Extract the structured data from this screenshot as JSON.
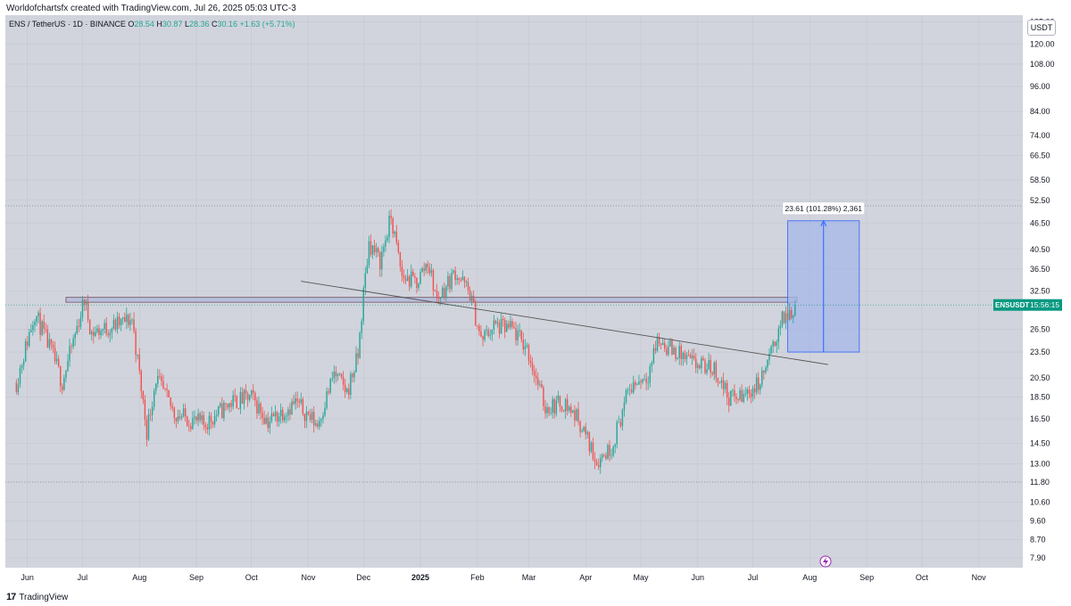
{
  "header": {
    "attribution": "Worldofchartsfx created with TradingView.com, Jul 26, 2025 05:03 UTC-3"
  },
  "legend": {
    "symbol": "ENS / TetherUS · 1D · BINANCE",
    "open": "O28.54",
    "high": "H30.87",
    "low": "L28.36",
    "close": "C30.16",
    "change": "+1.63 (+5.71%)"
  },
  "price_axis": {
    "currency": "USDT",
    "ticks": [
      "135.00",
      "120.00",
      "108.00",
      "96.00",
      "84.00",
      "74.00",
      "66.50",
      "58.50",
      "52.50",
      "46.50",
      "40.50",
      "36.50",
      "32.50",
      "26.50",
      "23.50",
      "20.50",
      "18.50",
      "16.50",
      "14.50",
      "13.00",
      "11.80",
      "10.60",
      "9.60",
      "8.70",
      "7.90"
    ]
  },
  "time_axis": {
    "labels": [
      "Jun",
      "Jul",
      "Aug",
      "Sep",
      "Oct",
      "Nov",
      "Dec",
      "2025",
      "Feb",
      "Mar",
      "Apr",
      "May",
      "Jun",
      "Jul",
      "Aug",
      "Sep",
      "Oct",
      "Nov"
    ]
  },
  "last_price": {
    "ticker": "ENSUSDT",
    "countdown": "15:56:15"
  },
  "measure": {
    "label": "23.61 (101.28%) 2,361"
  },
  "footer": {
    "brand": "TradingView",
    "logo_text": "17"
  },
  "colors": {
    "background": "#d1d4dc",
    "up": "#26a69a",
    "down": "#ef5350",
    "projection_fill": "#a5b7e8",
    "projection_line": "#2962ff",
    "last_price_tag": "#089981",
    "zone_fill": "#b8c0dc",
    "trendline": "#555555"
  },
  "chart_data": {
    "type": "candlestick",
    "symbol": "ENS / TetherUS",
    "interval": "1D",
    "exchange": "BINANCE",
    "scale": "log",
    "ylim": [
      7.5,
      140
    ],
    "x_range": [
      "2024-05-20",
      "2025-11-25"
    ],
    "last_ohlc": {
      "open": 28.54,
      "high": 30.87,
      "low": 28.36,
      "close": 30.16,
      "change": 1.63,
      "change_pct": 5.71
    },
    "dotted_levels": [
      51,
      11.8
    ],
    "resistance_zone": {
      "from": "2024-06-22",
      "to": "2025-07-25",
      "low": 30.6,
      "high": 31.4
    },
    "trendline": {
      "points": [
        [
          "2024-10-28",
          34.2
        ],
        [
          "2025-08-11",
          22.0
        ]
      ]
    },
    "projection": {
      "from": "2025-07-20",
      "to": "2025-08-28",
      "low": 23.5,
      "high": 47.1,
      "label": "23.61 (101.28%) 2,361"
    },
    "anchors": [
      [
        "2024-05-26",
        20.0
      ],
      [
        "2024-06-05",
        29.0
      ],
      [
        "2024-06-15",
        23.0
      ],
      [
        "2024-06-20",
        20.0
      ],
      [
        "2024-07-02",
        31.0
      ],
      [
        "2024-07-06",
        26.0
      ],
      [
        "2024-07-18",
        27.0
      ],
      [
        "2024-07-28",
        28.0
      ],
      [
        "2024-08-05",
        15.5
      ],
      [
        "2024-08-10",
        20.5
      ],
      [
        "2024-08-20",
        17.0
      ],
      [
        "2024-09-05",
        16.0
      ],
      [
        "2024-09-20",
        18.0
      ],
      [
        "2024-10-01",
        18.5
      ],
      [
        "2024-10-10",
        16.3
      ],
      [
        "2024-10-25",
        18.0
      ],
      [
        "2024-11-06",
        16.0
      ],
      [
        "2024-11-15",
        21.0
      ],
      [
        "2024-11-22",
        19.0
      ],
      [
        "2024-11-28",
        23.0
      ],
      [
        "2024-12-01",
        32.0
      ],
      [
        "2024-12-04",
        42.0
      ],
      [
        "2024-12-10",
        38.0
      ],
      [
        "2024-12-16",
        48.0
      ],
      [
        "2024-12-22",
        35.0
      ],
      [
        "2024-12-30",
        34.0
      ],
      [
        "2025-01-05",
        38.0
      ],
      [
        "2025-01-10",
        31.0
      ],
      [
        "2025-01-20",
        36.0
      ],
      [
        "2025-01-28",
        32.0
      ],
      [
        "2025-02-03",
        25.0
      ],
      [
        "2025-02-10",
        27.0
      ],
      [
        "2025-02-20",
        26.5
      ],
      [
        "2025-02-28",
        24.0
      ],
      [
        "2025-03-05",
        20.5
      ],
      [
        "2025-03-10",
        17.5
      ],
      [
        "2025-03-20",
        18.0
      ],
      [
        "2025-03-28",
        16.5
      ],
      [
        "2025-04-07",
        13.2
      ],
      [
        "2025-04-15",
        14.2
      ],
      [
        "2025-04-25",
        19.5
      ],
      [
        "2025-05-05",
        21.0
      ],
      [
        "2025-05-10",
        25.0
      ],
      [
        "2025-05-20",
        23.5
      ],
      [
        "2025-05-30",
        22.0
      ],
      [
        "2025-06-10",
        21.5
      ],
      [
        "2025-06-18",
        18.5
      ],
      [
        "2025-06-25",
        18.5
      ],
      [
        "2025-07-05",
        20.0
      ],
      [
        "2025-07-12",
        24.0
      ],
      [
        "2025-07-16",
        27.5
      ],
      [
        "2025-07-25",
        30.16
      ]
    ]
  }
}
